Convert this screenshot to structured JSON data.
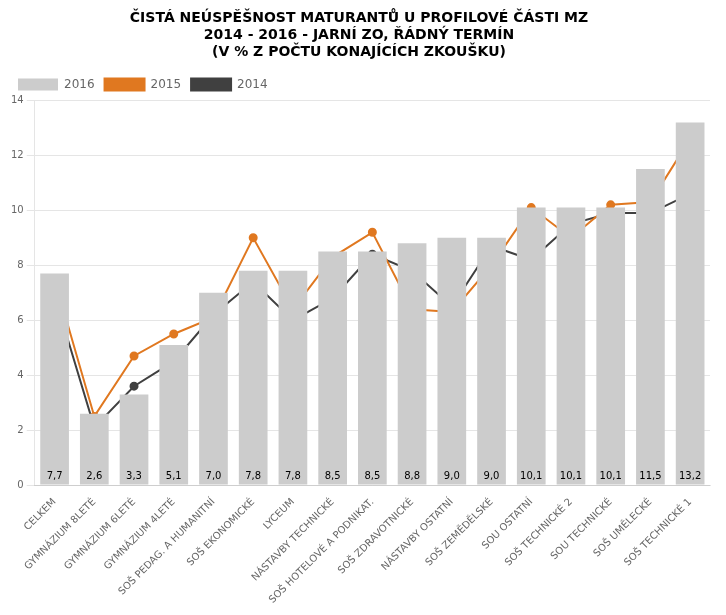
{
  "chart_data": {
    "type": "bar",
    "title": [
      "ČISTÁ NEÚSPĚŠNOST MATURANTŮ U PROFILOVÉ ČÁSTI MZ",
      "2014 - 2016 - JARNÍ ZO, ŘÁDNÝ TERMÍN",
      "(V % Z POČTU KONAJÍCÍCH ZKOUŠKU)"
    ],
    "categories": [
      "CELKEM",
      "GYMNÁZIUM 8LETÉ",
      "GYMNÁZIUM 6LETÉ",
      "GYMNÁZIUM 4LETÉ",
      "SOŠ PEDAG. A HUMANITNÍ",
      "SOŠ EKONOMICKÉ",
      "LYCEUM",
      "NÁSTAVBY TECHNICKÉ",
      "SOŠ HOTELOVÉ A PODNIKAT.",
      "SOŠ ZDRAVOTNICKÉ",
      "NÁSTAVBY OSTATNÍ",
      "SOŠ ZEMĚDĚLSKÉ",
      "SOU OSTATNÍ",
      "SOŠ TECHNICKÉ 2",
      "SOU TECHNICKÉ",
      "SOŠ UMĚLECKÉ",
      "SOŠ TECHNICKÉ 1"
    ],
    "series": [
      {
        "name": "2016",
        "type": "bar",
        "color": "#cccccc",
        "values": [
          7.7,
          2.6,
          3.3,
          5.1,
          7.0,
          7.8,
          7.8,
          8.5,
          8.5,
          8.8,
          9.0,
          9.0,
          10.1,
          10.1,
          10.1,
          11.5,
          13.2
        ],
        "data_labels": true,
        "value_labels": [
          "7,7",
          "2,6",
          "3,3",
          "5,1",
          "7,0",
          "7,8",
          "7,8",
          "8,5",
          "8,5",
          "8,8",
          "9,0",
          "9,0",
          "10,1",
          "10,1",
          "10,1",
          "11,5",
          "13,2"
        ]
      },
      {
        "name": "2015",
        "type": "line",
        "color": "#e07820",
        "marker": "circle",
        "values": [
          7.5,
          2.5,
          4.7,
          5.5,
          6.1,
          9.0,
          6.4,
          8.3,
          9.2,
          6.4,
          6.3,
          8.0,
          10.1,
          9.0,
          10.2,
          10.3,
          12.6
        ]
      },
      {
        "name": "2014",
        "type": "line",
        "color": "#404040",
        "marker": "circle",
        "values": [
          6.9,
          2.1,
          3.6,
          4.5,
          6.2,
          7.4,
          6.0,
          6.8,
          8.4,
          7.8,
          6.5,
          8.7,
          8.2,
          9.5,
          9.9,
          9.9,
          10.6
        ]
      }
    ],
    "ylim": [
      0,
      14
    ],
    "yticks": [
      0,
      2,
      4,
      6,
      8,
      10,
      12,
      14
    ],
    "grid": true,
    "legend": "upper left"
  }
}
